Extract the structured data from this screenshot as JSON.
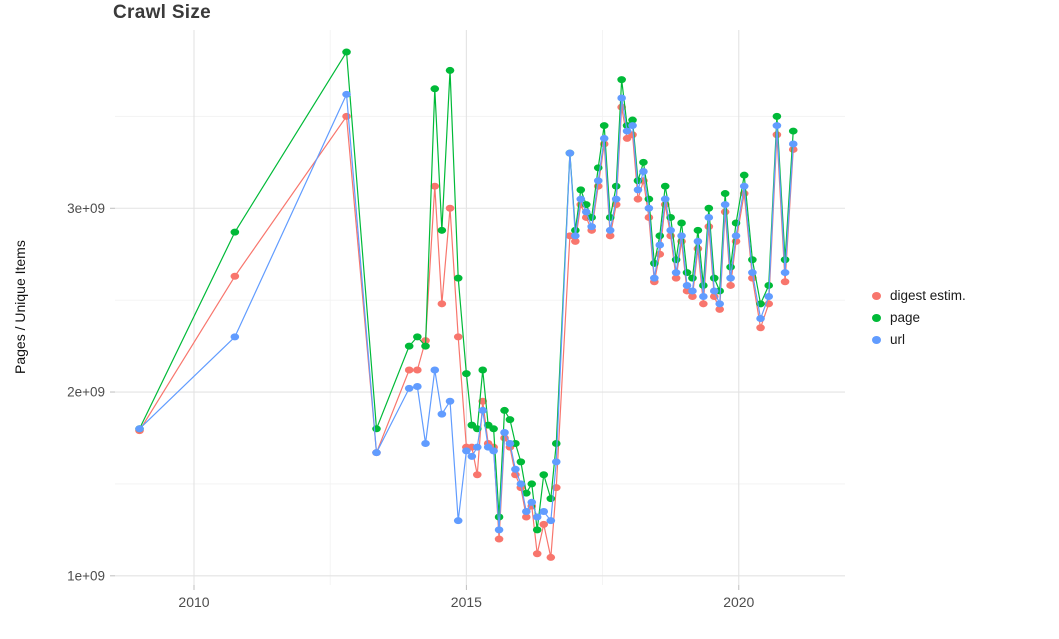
{
  "page": {
    "background": "#ffffff"
  },
  "chart_data": {
    "type": "line",
    "title": "Crawl Size",
    "xlabel": "",
    "ylabel": "Pages / Unique Items",
    "legend_position": "right",
    "grid": true,
    "values_unit": "1e+09 (billions)",
    "xlim": [
      2008.55,
      2021.95
    ],
    "ylim": [
      0.95,
      3.97
    ],
    "x_ticks": {
      "values": [
        2010,
        2015,
        2020
      ],
      "labels": [
        "2010",
        "2015",
        "2020"
      ]
    },
    "x_minor_ticks": [
      2012.5,
      2017.5
    ],
    "y_ticks": {
      "values": [
        1,
        2,
        3
      ],
      "labels": [
        "1e+09",
        "2e+09",
        "3e+09"
      ]
    },
    "y_minor_ticks": [
      1.5,
      2.5,
      3.5
    ],
    "x": [
      2009.0,
      2010.75,
      2012.8,
      2013.35,
      2013.95,
      2014.1,
      2014.25,
      2014.42,
      2014.55,
      2014.7,
      2014.85,
      2015.0,
      2015.1,
      2015.2,
      2015.3,
      2015.4,
      2015.5,
      2015.6,
      2015.7,
      2015.8,
      2015.9,
      2016.0,
      2016.1,
      2016.2,
      2016.3,
      2016.42,
      2016.55,
      2016.65,
      2016.9,
      2017.0,
      2017.1,
      2017.2,
      2017.3,
      2017.42,
      2017.53,
      2017.64,
      2017.75,
      2017.85,
      2017.95,
      2018.05,
      2018.15,
      2018.25,
      2018.35,
      2018.45,
      2018.55,
      2018.65,
      2018.75,
      2018.85,
      2018.95,
      2019.05,
      2019.15,
      2019.25,
      2019.35,
      2019.45,
      2019.55,
      2019.65,
      2019.75,
      2019.85,
      2019.95,
      2020.1,
      2020.25,
      2020.4,
      2020.55,
      2020.7,
      2020.85,
      2021.0
    ],
    "series": [
      {
        "name": "digest estim.",
        "color": "#F8766D",
        "values": [
          1.79,
          2.63,
          3.5,
          1.67,
          2.12,
          2.12,
          2.28,
          3.12,
          2.48,
          3.0,
          2.3,
          1.7,
          1.7,
          1.55,
          1.95,
          1.72,
          1.7,
          1.2,
          1.75,
          1.7,
          1.55,
          1.48,
          1.32,
          1.38,
          1.12,
          1.28,
          1.1,
          1.48,
          2.85,
          2.82,
          3.02,
          2.95,
          2.88,
          3.12,
          3.35,
          2.85,
          3.02,
          3.55,
          3.38,
          3.4,
          3.05,
          3.15,
          2.95,
          2.6,
          2.75,
          3.02,
          2.85,
          2.62,
          2.82,
          2.55,
          2.52,
          2.78,
          2.48,
          2.9,
          2.52,
          2.45,
          2.98,
          2.58,
          2.82,
          3.08,
          2.62,
          2.35,
          2.48,
          3.4,
          2.6,
          3.32
        ]
      },
      {
        "name": "page",
        "color": "#00BA38",
        "values": [
          1.8,
          2.87,
          3.85,
          1.8,
          2.25,
          2.3,
          2.25,
          3.65,
          2.88,
          3.75,
          2.62,
          2.1,
          1.82,
          1.8,
          2.12,
          1.82,
          1.8,
          1.32,
          1.9,
          1.85,
          1.72,
          1.62,
          1.45,
          1.5,
          1.25,
          1.55,
          1.42,
          1.72,
          3.3,
          2.88,
          3.1,
          3.02,
          2.95,
          3.22,
          3.45,
          2.95,
          3.12,
          3.7,
          3.45,
          3.48,
          3.15,
          3.25,
          3.05,
          2.7,
          2.85,
          3.12,
          2.95,
          2.72,
          2.92,
          2.65,
          2.62,
          2.88,
          2.58,
          3.0,
          2.62,
          2.55,
          3.08,
          2.68,
          2.92,
          3.18,
          2.72,
          2.48,
          2.58,
          3.5,
          2.72,
          3.42
        ]
      },
      {
        "name": "url",
        "color": "#619CFF",
        "values": [
          1.8,
          2.3,
          3.62,
          1.67,
          2.02,
          2.03,
          1.72,
          2.12,
          1.88,
          1.95,
          1.3,
          1.68,
          1.65,
          1.7,
          1.9,
          1.7,
          1.68,
          1.25,
          1.78,
          1.72,
          1.58,
          1.5,
          1.35,
          1.4,
          1.32,
          1.35,
          1.3,
          1.62,
          3.3,
          2.85,
          3.05,
          2.98,
          2.9,
          3.15,
          3.38,
          2.88,
          3.05,
          3.6,
          3.42,
          3.45,
          3.1,
          3.2,
          3.0,
          2.62,
          2.8,
          3.05,
          2.88,
          2.65,
          2.85,
          2.58,
          2.55,
          2.82,
          2.52,
          2.95,
          2.55,
          2.48,
          3.02,
          2.62,
          2.85,
          3.12,
          2.65,
          2.4,
          2.52,
          3.45,
          2.65,
          3.35
        ]
      }
    ]
  }
}
